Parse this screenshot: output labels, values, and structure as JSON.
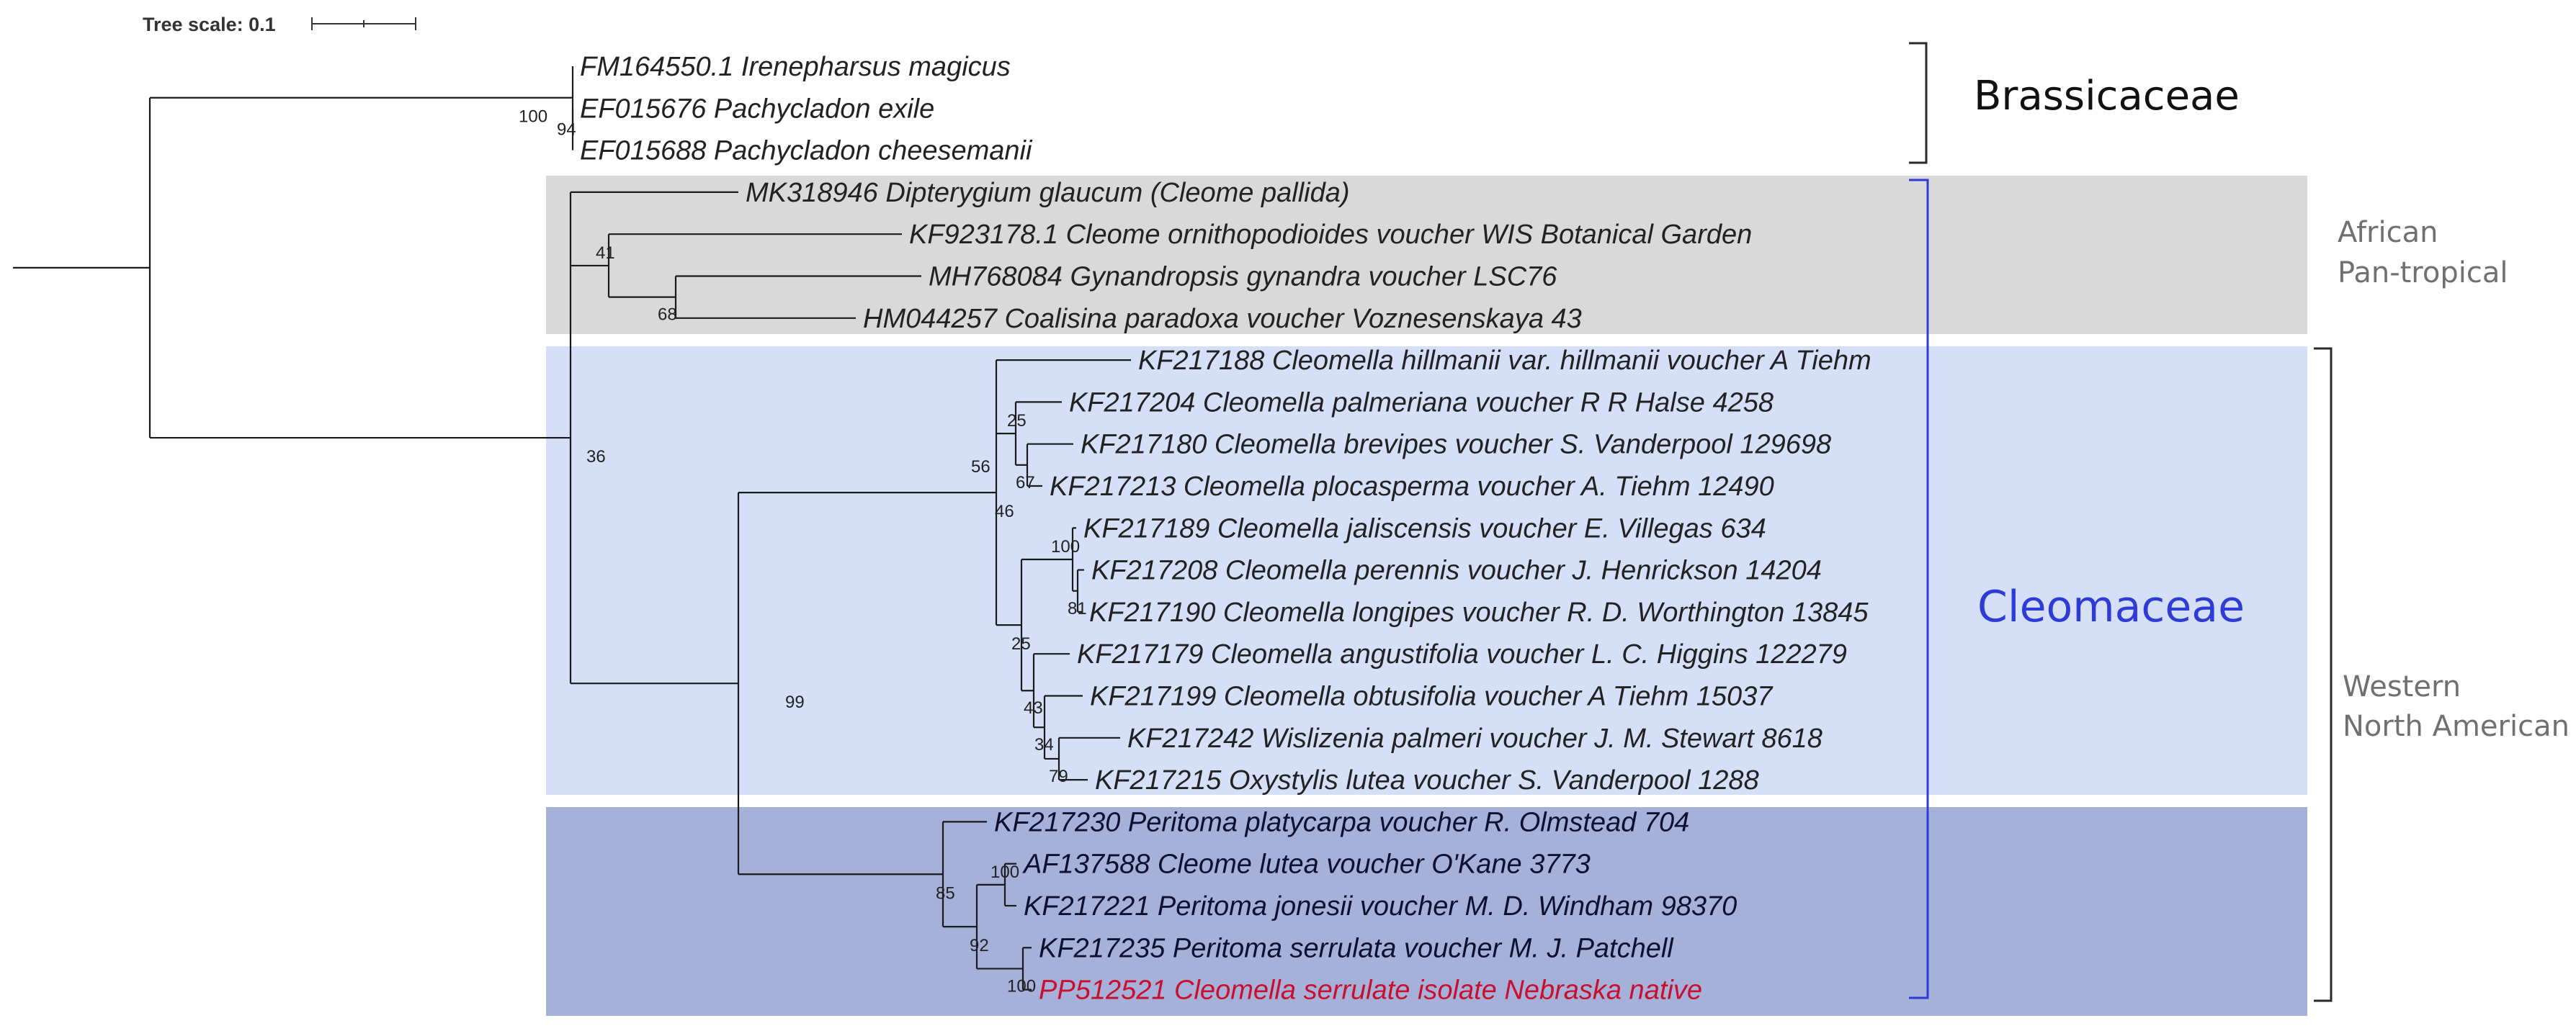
{
  "tree_scale": {
    "label": "Tree scale: 0.1"
  },
  "colors": {
    "african_box": "#d9d9d9",
    "cleomella_box": "#d5e0f8",
    "peritoma_box": "#a6b1d9",
    "leaf_text": "#222222",
    "leaf_text_dark_box": "#0d1030",
    "highlight_leaf": "#c8102e",
    "cleomaceae": "#2e3bd6",
    "bracket": "#2a2a2a",
    "region_text": "#707070"
  },
  "leaves": [
    {
      "id": "L1",
      "label": "FM164550.1 Irenepharsus magicus"
    },
    {
      "id": "L2",
      "label": "EF015676 Pachycladon exile"
    },
    {
      "id": "L3",
      "label": "EF015688 Pachycladon cheesemanii"
    },
    {
      "id": "L4",
      "label": "MK318946 Dipterygium glaucum (Cleome pallida)"
    },
    {
      "id": "L5",
      "label": "KF923178.1 Cleome ornithopodioides voucher WIS Botanical Garden"
    },
    {
      "id": "L6",
      "label": "MH768084 Gynandropsis gynandra voucher LSC76"
    },
    {
      "id": "L7",
      "label": "HM044257 Coalisina paradoxa voucher Voznesenskaya 43"
    },
    {
      "id": "L8",
      "label": "KF217188 Cleomella hillmanii var. hillmanii voucher A Tiehm"
    },
    {
      "id": "L9",
      "label": "KF217204 Cleomella palmeriana voucher R R Halse 4258"
    },
    {
      "id": "L10",
      "label": "KF217180 Cleomella brevipes voucher S. Vanderpool 129698"
    },
    {
      "id": "L11",
      "label": "KF217213 Cleomella plocasperma voucher A. Tiehm 12490"
    },
    {
      "id": "L12",
      "label": "KF217189 Cleomella jaliscensis voucher E. Villegas 634"
    },
    {
      "id": "L13",
      "label": "KF217208 Cleomella perennis voucher J. Henrickson 14204"
    },
    {
      "id": "L14",
      "label": "KF217190 Cleomella longipes voucher R. D. Worthington 13845"
    },
    {
      "id": "L15",
      "label": "KF217179 Cleomella angustifolia voucher L. C. Higgins 122279"
    },
    {
      "id": "L16",
      "label": "KF217199 Cleomella obtusifolia voucher A Tiehm 15037"
    },
    {
      "id": "L17",
      "label": "KF217242 Wislizenia palmeri voucher J. M. Stewart 8618"
    },
    {
      "id": "L18",
      "label": "KF217215 Oxystylis lutea voucher S. Vanderpool 1288"
    },
    {
      "id": "L19",
      "label": "KF217230 Peritoma platycarpa voucher R. Olmstead 704"
    },
    {
      "id": "L20",
      "label": "AF137588 Cleome lutea voucher O'Kane 3773"
    },
    {
      "id": "L21",
      "label": "KF217221 Peritoma jonesii voucher M. D. Windham 98370"
    },
    {
      "id": "L22",
      "label": "KF217235 Peritoma serrulata voucher M. J. Patchell"
    },
    {
      "id": "L23",
      "label": "PP512521 Cleomella serrulate isolate Nebraska native"
    }
  ],
  "internal_nodes": [
    {
      "id": "N_root",
      "support": ""
    },
    {
      "id": "N_brass",
      "support": "100"
    },
    {
      "id": "N_b2",
      "support": "94"
    },
    {
      "id": "N_cleo",
      "support": "36"
    },
    {
      "id": "N_afr",
      "support": "41"
    },
    {
      "id": "N_gyn",
      "support": "68"
    },
    {
      "id": "N_wna",
      "support": "99"
    },
    {
      "id": "N_cleomella",
      "support": "56"
    },
    {
      "id": "N_c2",
      "support": "46"
    },
    {
      "id": "N_c3",
      "support": "25"
    },
    {
      "id": "N_c4",
      "support": "67"
    },
    {
      "id": "N_c5",
      "support": "25"
    },
    {
      "id": "N_c6",
      "support": "100"
    },
    {
      "id": "N_c7",
      "support": "81"
    },
    {
      "id": "N_c8",
      "support": "43"
    },
    {
      "id": "N_c9",
      "support": "34"
    },
    {
      "id": "N_c10",
      "support": "79"
    },
    {
      "id": "N_peri",
      "support": "85"
    },
    {
      "id": "N_p2",
      "support": "92"
    },
    {
      "id": "N_p3",
      "support": "100"
    },
    {
      "id": "N_p4",
      "support": "100"
    }
  ],
  "groups": {
    "brassicaceae": "Brassicaceae",
    "cleomaceae": "Cleomaceae",
    "african": [
      "African",
      "Pan-tropical"
    ],
    "western": [
      "Western",
      "North American"
    ]
  }
}
